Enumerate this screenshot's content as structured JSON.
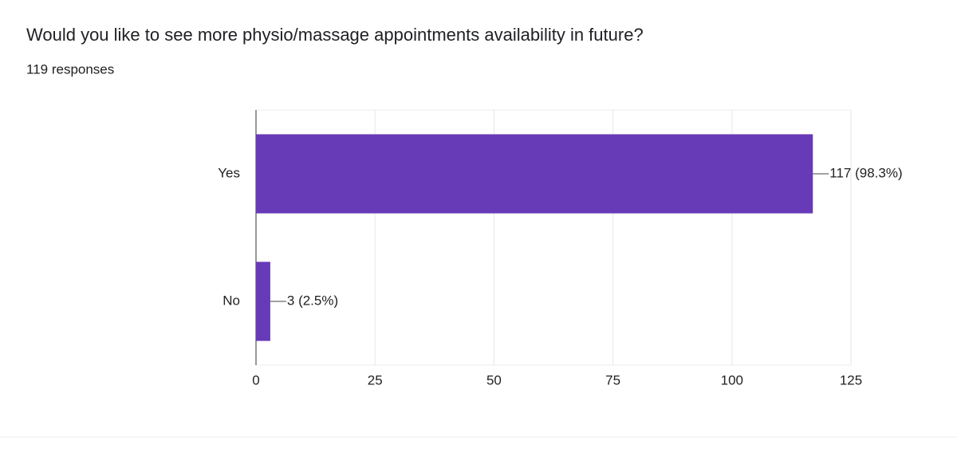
{
  "chart_data": {
    "type": "bar",
    "orientation": "horizontal",
    "title": "Would you like to see more physio/massage appointments availability in future?",
    "subtitle": "119 responses",
    "categories": [
      "Yes",
      "No"
    ],
    "values": [
      117,
      3
    ],
    "value_labels": [
      "117 (98.3%)",
      "3 (2.5%)"
    ],
    "color": "#673ab7",
    "xlim": [
      0,
      125
    ],
    "xticks": [
      0,
      25,
      50,
      75,
      100,
      125
    ],
    "grid": true
  }
}
